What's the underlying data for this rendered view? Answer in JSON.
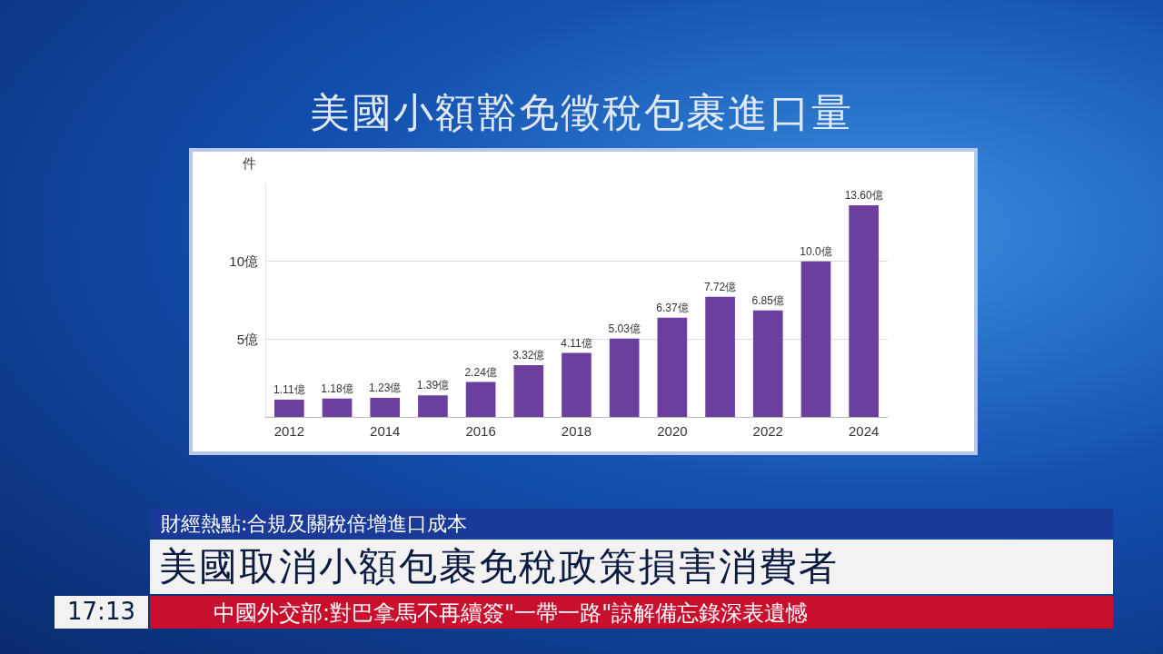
{
  "chart_data": {
    "type": "bar",
    "title": "美國小額豁免徵稅包裹進口量",
    "ylabel": "件",
    "categories": [
      "2012",
      null,
      "2014",
      null,
      "2016",
      null,
      "2018",
      null,
      "2020",
      null,
      "2022",
      null,
      "2024"
    ],
    "values": [
      1.11,
      1.18,
      1.23,
      1.39,
      2.24,
      3.32,
      4.11,
      5.03,
      6.37,
      7.72,
      6.85,
      10.0,
      13.6
    ],
    "value_labels": [
      "1.11億",
      "1.18億",
      "1.23億",
      "1.39億",
      "2.24億",
      "3.32億",
      "4.11億",
      "5.03億",
      "6.37億",
      "7.72億",
      "6.85億",
      "10.0億",
      "13.60億"
    ],
    "color": "#6a3fa0",
    "ylim": [
      0,
      15
    ],
    "yticks": [
      {
        "value": 0,
        "label": null
      },
      {
        "value": 5,
        "label": "5億"
      },
      {
        "value": 10,
        "label": "10億"
      }
    ],
    "grid": "y",
    "annotations": [
      "財經熱點:合規及關稅倍增進口成本",
      "美國取消小額包裹免稅政策損害消費者",
      "17:13",
      "中國外交部:對巴拿馬不再續簽\"一帶一路\"諒解備忘錄深表遺憾"
    ]
  }
}
